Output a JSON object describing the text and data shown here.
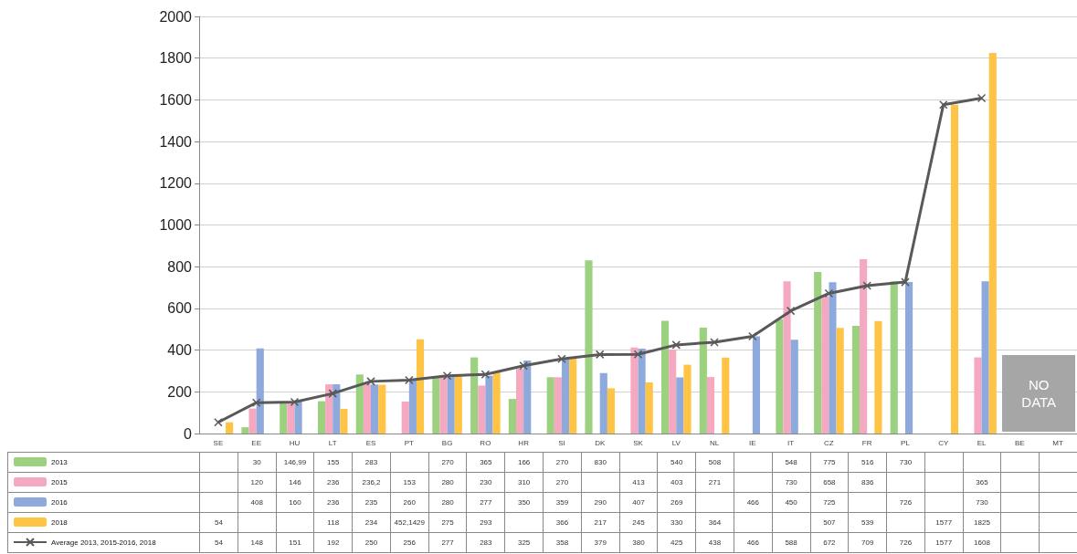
{
  "chart_data": {
    "type": "bar",
    "categories": [
      "SE",
      "EE",
      "HU",
      "LT",
      "ES",
      "PT",
      "BG",
      "RO",
      "HR",
      "SI",
      "DK",
      "SK",
      "LV",
      "NL",
      "IE",
      "IT",
      "CZ",
      "FR",
      "PL",
      "CY",
      "EL",
      "BE",
      "MT"
    ],
    "series": [
      {
        "name": "2013",
        "color": "#9bd17f",
        "values": [
          null,
          30,
          146.99,
          155,
          283,
          null,
          270,
          365,
          166,
          270,
          830,
          null,
          540,
          508,
          null,
          548,
          775,
          516,
          730,
          null,
          null,
          null,
          null
        ],
        "value_labels": [
          null,
          "30",
          "146,99",
          "155",
          "283",
          null,
          "270",
          "365",
          "166",
          "270",
          "830",
          null,
          "540",
          "508",
          null,
          "548",
          "775",
          "516",
          "730",
          null,
          null,
          null,
          null
        ]
      },
      {
        "name": "2015",
        "color": "#f5a9c0",
        "values": [
          null,
          120,
          146,
          236,
          236.2,
          153,
          280,
          230,
          310,
          270,
          null,
          413,
          403,
          271,
          null,
          730,
          658,
          836,
          null,
          null,
          365,
          null,
          null
        ],
        "value_labels": [
          null,
          "120",
          "146",
          "236",
          "236,2",
          "153",
          "280",
          "230",
          "310",
          "270",
          null,
          "413",
          "403",
          "271",
          null,
          "730",
          "658",
          "836",
          null,
          null,
          "365",
          null,
          null
        ]
      },
      {
        "name": "2016",
        "color": "#8ea9db",
        "values": [
          null,
          408,
          160,
          236,
          235,
          260,
          280,
          277,
          350,
          359,
          290,
          407,
          269,
          null,
          466,
          450,
          725,
          null,
          726,
          null,
          730,
          null,
          null
        ],
        "value_labels": [
          null,
          "408",
          "160",
          "236",
          "235",
          "260",
          "280",
          "277",
          "350",
          "359",
          "290",
          "407",
          "269",
          null,
          "466",
          "450",
          "725",
          null,
          "726",
          null,
          "730",
          null,
          null
        ]
      },
      {
        "name": "2018",
        "color": "#ffc445",
        "values": [
          54,
          null,
          null,
          118,
          234,
          452.1429,
          275,
          293,
          null,
          366,
          217,
          245,
          330,
          364,
          null,
          null,
          507,
          539,
          null,
          1577,
          1825,
          null,
          null
        ],
        "value_labels": [
          "54",
          null,
          null,
          "118",
          "234",
          "452,1429",
          "275",
          "293",
          null,
          "366",
          "217",
          "245",
          "330",
          "364",
          null,
          null,
          "507",
          "539",
          null,
          "1577",
          "1825",
          null,
          null
        ]
      },
      {
        "name": "Average 2013, 2015-2016, 2018",
        "type": "line",
        "marker": "cross",
        "color": "#595959",
        "values": [
          54,
          148,
          151,
          192,
          250,
          256,
          277,
          283,
          325,
          358,
          379,
          380,
          425,
          438,
          466,
          588,
          672,
          709,
          726,
          1577,
          1608,
          null,
          null
        ],
        "value_labels": [
          "54",
          "148",
          "151",
          "192",
          "250",
          "256",
          "277",
          "283",
          "325",
          "358",
          "379",
          "380",
          "425",
          "438",
          "466",
          "588",
          "672",
          "709",
          "726",
          "1577",
          "1608",
          null,
          null
        ]
      }
    ],
    "ylim": [
      0,
      2000
    ],
    "yticks": [
      0,
      200,
      400,
      600,
      800,
      1000,
      1200,
      1400,
      1600,
      1800,
      2000
    ],
    "grid": "y",
    "legend": "bottom left",
    "annotations": [
      "NO DATA"
    ]
  }
}
